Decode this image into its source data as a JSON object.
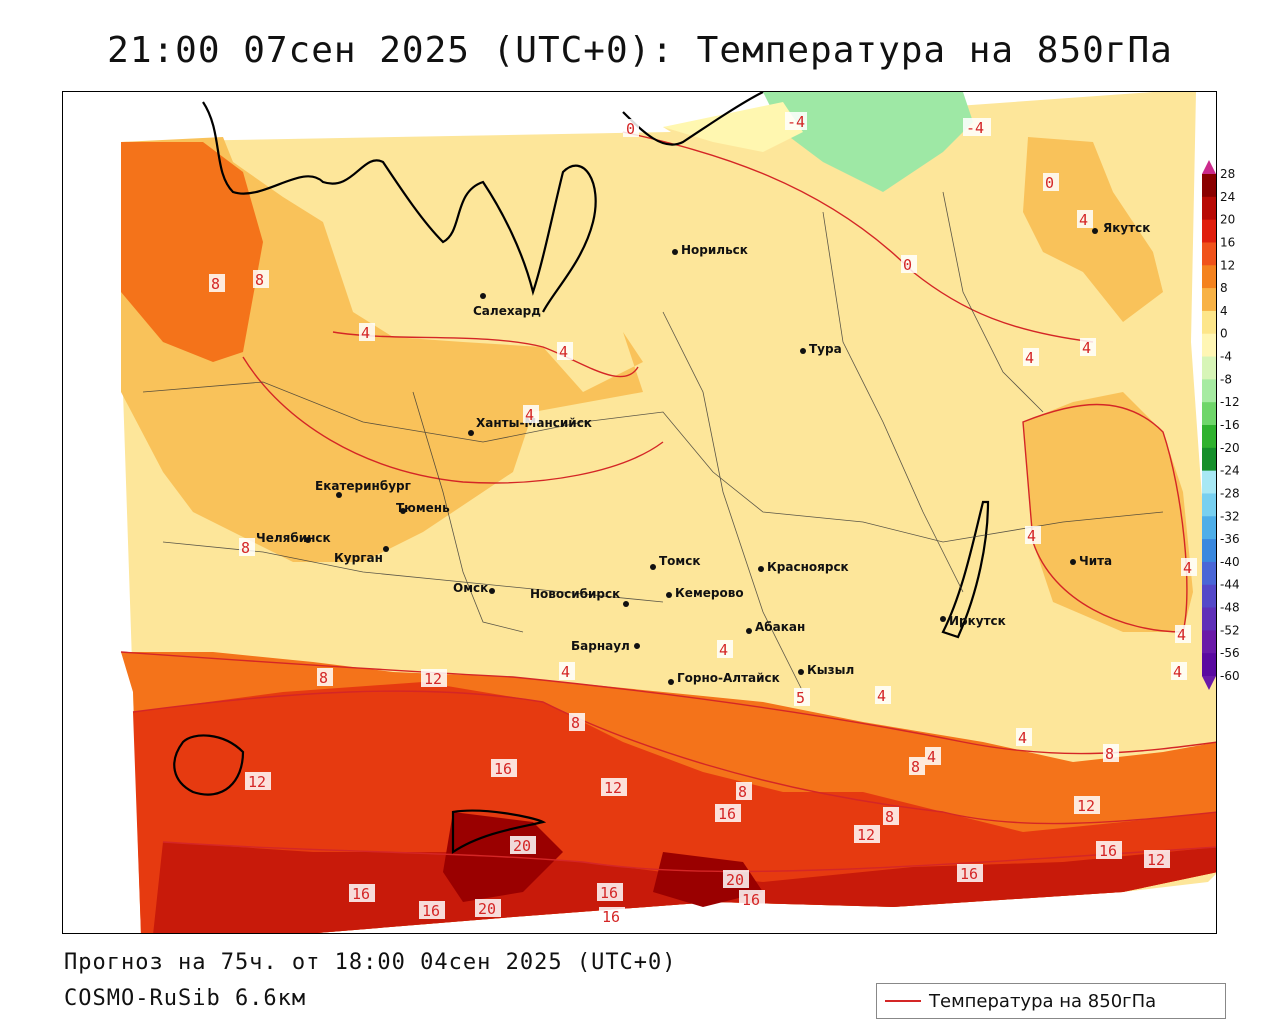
{
  "header": {
    "title": "21:00 07сен 2025 (UTC+0): Температура на 850гПа"
  },
  "footer": {
    "forecast": "Прогноз на 75ч. от 18:00 04сен 2025 (UTC+0)",
    "model": "COSMO-RuSib 6.6км",
    "legend_label": "Температура на 850гПа"
  },
  "colors": {
    "isoline": "#d42626",
    "band_neg4_0": "#fff7b0",
    "band_0_4": "#fde69a",
    "band_4_8": "#f9c25a",
    "band_8_12": "#f4731a",
    "band_12_16": "#e63a10",
    "band_16_20": "#c81a0a",
    "band_20_24": "#9a0000",
    "cold": "#9ee8a5"
  },
  "color_scale": {
    "labels": [
      "28",
      "24",
      "20",
      "16",
      "12",
      "8",
      "4",
      "0",
      "-4",
      "-8",
      "-12",
      "-16",
      "-20",
      "-24",
      "-28",
      "-32",
      "-36",
      "-40",
      "-44",
      "-48",
      "-52",
      "-56",
      "-60"
    ],
    "colors": [
      "#b4005a",
      "#8a0000",
      "#b80a05",
      "#e01e0c",
      "#f0521a",
      "#f4821e",
      "#f8b245",
      "#fde68a",
      "#fff6b4",
      "#d7f5b7",
      "#a6eba2",
      "#6fd66a",
      "#2fb22e",
      "#158f2a",
      "#a8e8f4",
      "#78d0f0",
      "#4eaee8",
      "#3a88de",
      "#4a66d6",
      "#5448c8",
      "#5f30b8",
      "#6a1aa8",
      "#5a0aa0",
      "#800090"
    ]
  },
  "cities": [
    {
      "name": "Якутск"
    },
    {
      "name": "Норильск"
    },
    {
      "name": "Салехард"
    },
    {
      "name": "Тура"
    },
    {
      "name": "Ханты-Мансийск"
    },
    {
      "name": "Екатеринбург"
    },
    {
      "name": "Тюмень"
    },
    {
      "name": "Челябинск"
    },
    {
      "name": "Курган"
    },
    {
      "name": "Омск"
    },
    {
      "name": "Новосибирск"
    },
    {
      "name": "Томск"
    },
    {
      "name": "Кемерово"
    },
    {
      "name": "Красноярск"
    },
    {
      "name": "Барнаул"
    },
    {
      "name": "Абакан"
    },
    {
      "name": "Горно-Алтайск"
    },
    {
      "name": "Кызыл"
    },
    {
      "name": "Иркутск"
    },
    {
      "name": "Чита"
    }
  ],
  "isolines": [
    {
      "value": "0"
    },
    {
      "value": "-4"
    },
    {
      "value": "-4"
    },
    {
      "value": "0"
    },
    {
      "value": "4"
    },
    {
      "value": "0"
    },
    {
      "value": "8"
    },
    {
      "value": "8"
    },
    {
      "value": "4"
    },
    {
      "value": "4"
    },
    {
      "value": "4"
    },
    {
      "value": "4"
    },
    {
      "value": "8"
    },
    {
      "value": "4"
    },
    {
      "value": "4"
    },
    {
      "value": "4"
    },
    {
      "value": "4"
    },
    {
      "value": "4"
    },
    {
      "value": "8"
    },
    {
      "value": "12"
    },
    {
      "value": "4"
    },
    {
      "value": "4"
    },
    {
      "value": "5"
    },
    {
      "value": "4"
    },
    {
      "value": "8"
    },
    {
      "value": "12"
    },
    {
      "value": "16"
    },
    {
      "value": "12"
    },
    {
      "value": "8"
    },
    {
      "value": "16"
    },
    {
      "value": "8"
    },
    {
      "value": "12"
    },
    {
      "value": "8"
    },
    {
      "value": "20"
    },
    {
      "value": "16"
    },
    {
      "value": "16"
    },
    {
      "value": "12"
    },
    {
      "value": "16"
    },
    {
      "value": "20"
    },
    {
      "value": "16"
    },
    {
      "value": "16"
    },
    {
      "value": "20"
    },
    {
      "value": "16"
    },
    {
      "value": "16"
    },
    {
      "value": "12"
    },
    {
      "value": "8"
    },
    {
      "value": "4"
    },
    {
      "value": "4"
    }
  ]
}
